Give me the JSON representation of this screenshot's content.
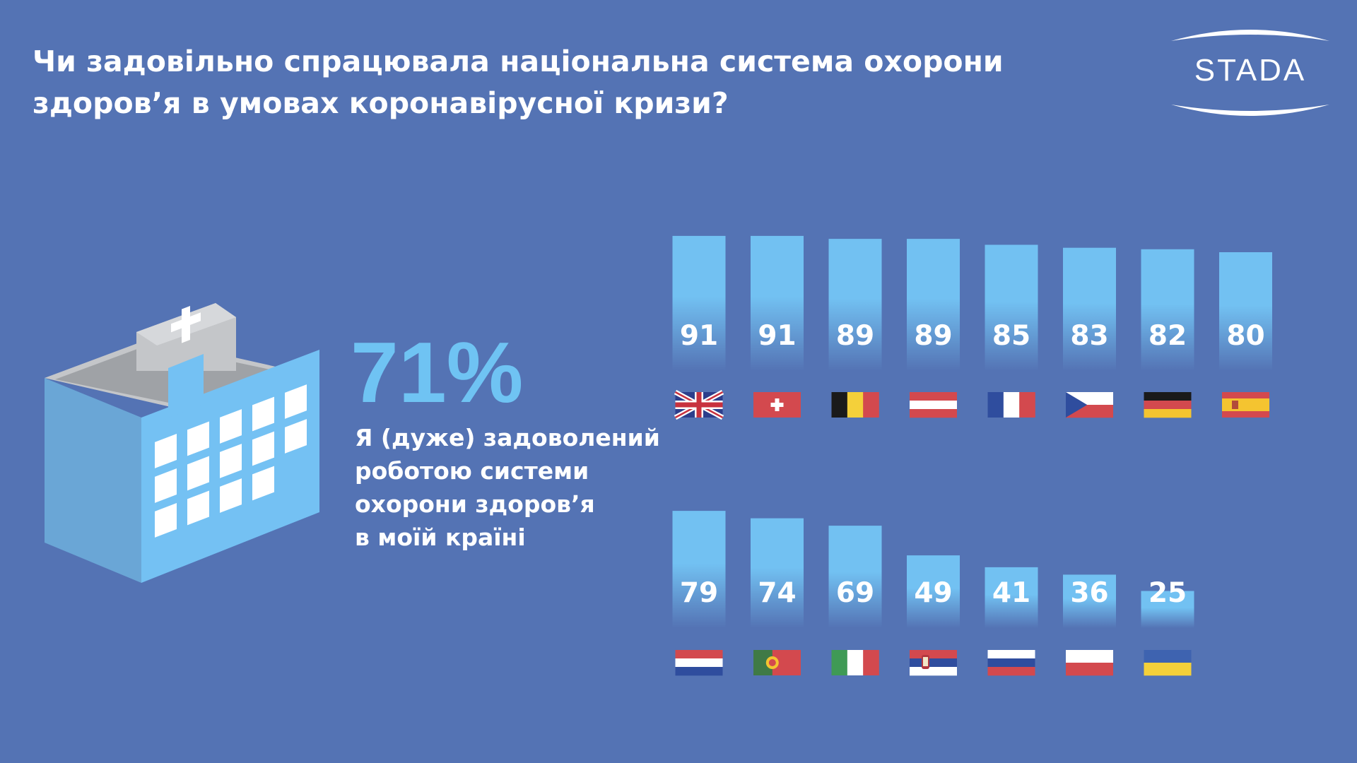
{
  "title": {
    "line1": "Чи задовільно спрацювала національна система охорони",
    "line2": "здоров’я в умовах коронавірусної кризи?"
  },
  "logo": {
    "text": "STADA"
  },
  "stat": {
    "value": "71%",
    "description": [
      "Я (дуже) задоволений",
      "роботою системи",
      "охорони здоров’я",
      "в моїй країні"
    ]
  },
  "colors": {
    "background": "#5473b4",
    "bar": "#72c1f2",
    "stat_value": "#6fc3f3",
    "text": "#ffffff"
  },
  "chart_data": {
    "type": "bar",
    "unit": "%",
    "rows": [
      {
        "categories": [
          "uk-flag",
          "ch-flag",
          "be-flag",
          "at-flag",
          "fr-flag",
          "cz-flag",
          "de-flag",
          "es-flag"
        ],
        "values": [
          91,
          91,
          89,
          89,
          85,
          83,
          82,
          80
        ]
      },
      {
        "categories": [
          "nl-flag",
          "pt-flag",
          "it-flag",
          "rs-flag",
          "ru-flag",
          "pl-flag",
          "ua-flag"
        ],
        "values": [
          79,
          74,
          69,
          49,
          41,
          36,
          25
        ]
      }
    ]
  }
}
